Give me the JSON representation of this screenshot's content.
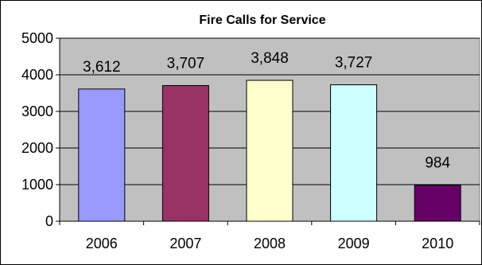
{
  "chart_data": {
    "type": "bar",
    "title": "Fire Calls for Service",
    "categories": [
      "2006",
      "2007",
      "2008",
      "2009",
      "2010"
    ],
    "values": [
      3612,
      3707,
      3848,
      3727,
      984
    ],
    "data_labels": [
      "3,612",
      "3,707",
      "3,848",
      "3,727",
      "984"
    ],
    "bar_colors": [
      "#9999ff",
      "#993366",
      "#ffffcc",
      "#ccffff",
      "#660066"
    ],
    "plot_background": "#c0c0c0",
    "ylim": [
      0,
      5000
    ],
    "yticks": [
      0,
      1000,
      2000,
      3000,
      4000,
      5000
    ],
    "ytick_labels": [
      "0",
      "1000",
      "2000",
      "3000",
      "4000",
      "5000"
    ],
    "grid": true,
    "legend": "none",
    "xlabel": "",
    "ylabel": ""
  }
}
